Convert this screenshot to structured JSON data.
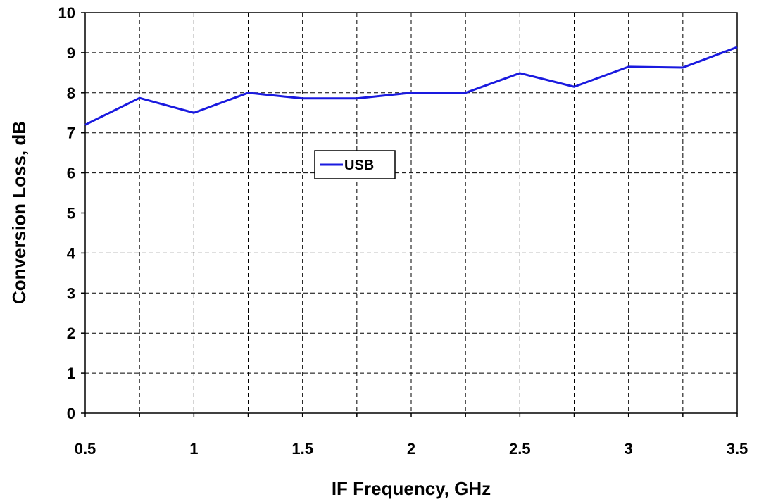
{
  "chart_data": {
    "type": "line",
    "xlabel": "IF Frequency, GHz",
    "ylabel": "Conversion Loss, dB",
    "x": [
      0.5,
      0.75,
      1,
      1.25,
      1.5,
      1.75,
      2,
      2.25,
      2.5,
      2.75,
      3,
      3.25,
      3.5
    ],
    "series": [
      {
        "name": "USB",
        "color": "#1a1adf",
        "values": [
          7.2,
          7.87,
          7.5,
          8.0,
          7.86,
          7.86,
          8.0,
          8.0,
          8.49,
          8.15,
          8.65,
          8.63,
          9.14
        ]
      }
    ],
    "xlim": [
      0.5,
      3.5
    ],
    "xticks": [
      0.5,
      1,
      1.5,
      2,
      2.5,
      3,
      3.5
    ],
    "xminorticks": [
      0.75,
      1.25,
      1.75,
      2.25,
      2.75,
      3.25
    ],
    "ylim": [
      0,
      10
    ],
    "yticks": [
      0,
      1,
      2,
      3,
      4,
      5,
      6,
      7,
      8,
      9,
      10
    ],
    "grid": true
  }
}
